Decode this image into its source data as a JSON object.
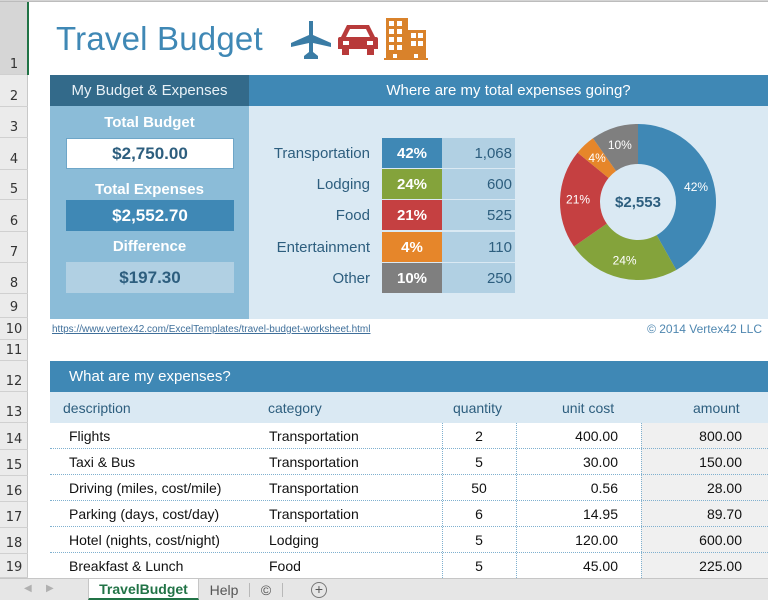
{
  "sheet": {
    "row_numbers": [
      "1",
      "2",
      "3",
      "4",
      "5",
      "6",
      "7",
      "8",
      "9",
      "10",
      "11",
      "12",
      "13",
      "14",
      "15",
      "16",
      "17",
      "18",
      "19"
    ],
    "selected_row": "1"
  },
  "header": {
    "title": "Travel Budget",
    "icons": [
      "airplane-icon",
      "car-icon",
      "building-icon"
    ],
    "icon_colors": {
      "airplane": "#3a7ca5",
      "car": "#b83a3a",
      "building": "#d9822b"
    }
  },
  "budget_panel": {
    "heading": "My Budget & Expenses",
    "total_budget_label": "Total Budget",
    "total_budget_value": "$2,750.00",
    "total_expenses_label": "Total Expenses",
    "total_expenses_value": "$2,552.70",
    "difference_label": "Difference",
    "difference_value": "$197.30"
  },
  "breakdown_panel": {
    "heading": "Where are my total expenses going?",
    "categories": [
      {
        "name": "Transportation",
        "pct": "42%",
        "value": "1,068",
        "color": "#3f88b5"
      },
      {
        "name": "Lodging",
        "pct": "24%",
        "value": "600",
        "color": "#84a33b"
      },
      {
        "name": "Food",
        "pct": "21%",
        "value": "525",
        "color": "#c54041"
      },
      {
        "name": "Entertainment",
        "pct": "4%",
        "value": "110",
        "color": "#e6862a"
      },
      {
        "name": "Other",
        "pct": "10%",
        "value": "250",
        "color": "#7f7f7f"
      }
    ],
    "donut_center": "$2,553"
  },
  "chart_data": {
    "type": "pie",
    "subtype": "donut",
    "title": "Where are my total expenses going?",
    "center_label": "$2,553",
    "categories": [
      "Transportation",
      "Lodging",
      "Food",
      "Entertainment",
      "Other"
    ],
    "values": [
      1068,
      600,
      525,
      110,
      250
    ],
    "percent_labels": [
      "42%",
      "24%",
      "21%",
      "4%",
      "10%"
    ],
    "colors": [
      "#3f88b5",
      "#84a33b",
      "#c54041",
      "#e6862a",
      "#7f7f7f"
    ]
  },
  "footer_links": {
    "url": "https://www.vertex42.com/ExcelTemplates/travel-budget-worksheet.html",
    "copyright": "© 2014 Vertex42 LLC"
  },
  "expenses": {
    "heading": "What are my expenses?",
    "columns": [
      "description",
      "category",
      "quantity",
      "unit cost",
      "amount"
    ],
    "rows": [
      {
        "description": "Flights",
        "category": "Transportation",
        "quantity": "2",
        "unit_cost": "400.00",
        "amount": "800.00"
      },
      {
        "description": "Taxi & Bus",
        "category": "Transportation",
        "quantity": "5",
        "unit_cost": "30.00",
        "amount": "150.00"
      },
      {
        "description": "Driving (miles, cost/mile)",
        "category": "Transportation",
        "quantity": "50",
        "unit_cost": "0.56",
        "amount": "28.00"
      },
      {
        "description": "Parking (days, cost/day)",
        "category": "Transportation",
        "quantity": "6",
        "unit_cost": "14.95",
        "amount": "89.70"
      },
      {
        "description": "Hotel (nights, cost/night)",
        "category": "Lodging",
        "quantity": "5",
        "unit_cost": "120.00",
        "amount": "600.00"
      },
      {
        "description": "Breakfast & Lunch",
        "category": "Food",
        "quantity": "5",
        "unit_cost": "45.00",
        "amount": "225.00"
      }
    ]
  },
  "tabs": {
    "items": [
      {
        "label": "TravelBudget",
        "active": true
      },
      {
        "label": "Help",
        "active": false
      },
      {
        "label": "©",
        "active": false
      }
    ],
    "add_label": "+"
  }
}
